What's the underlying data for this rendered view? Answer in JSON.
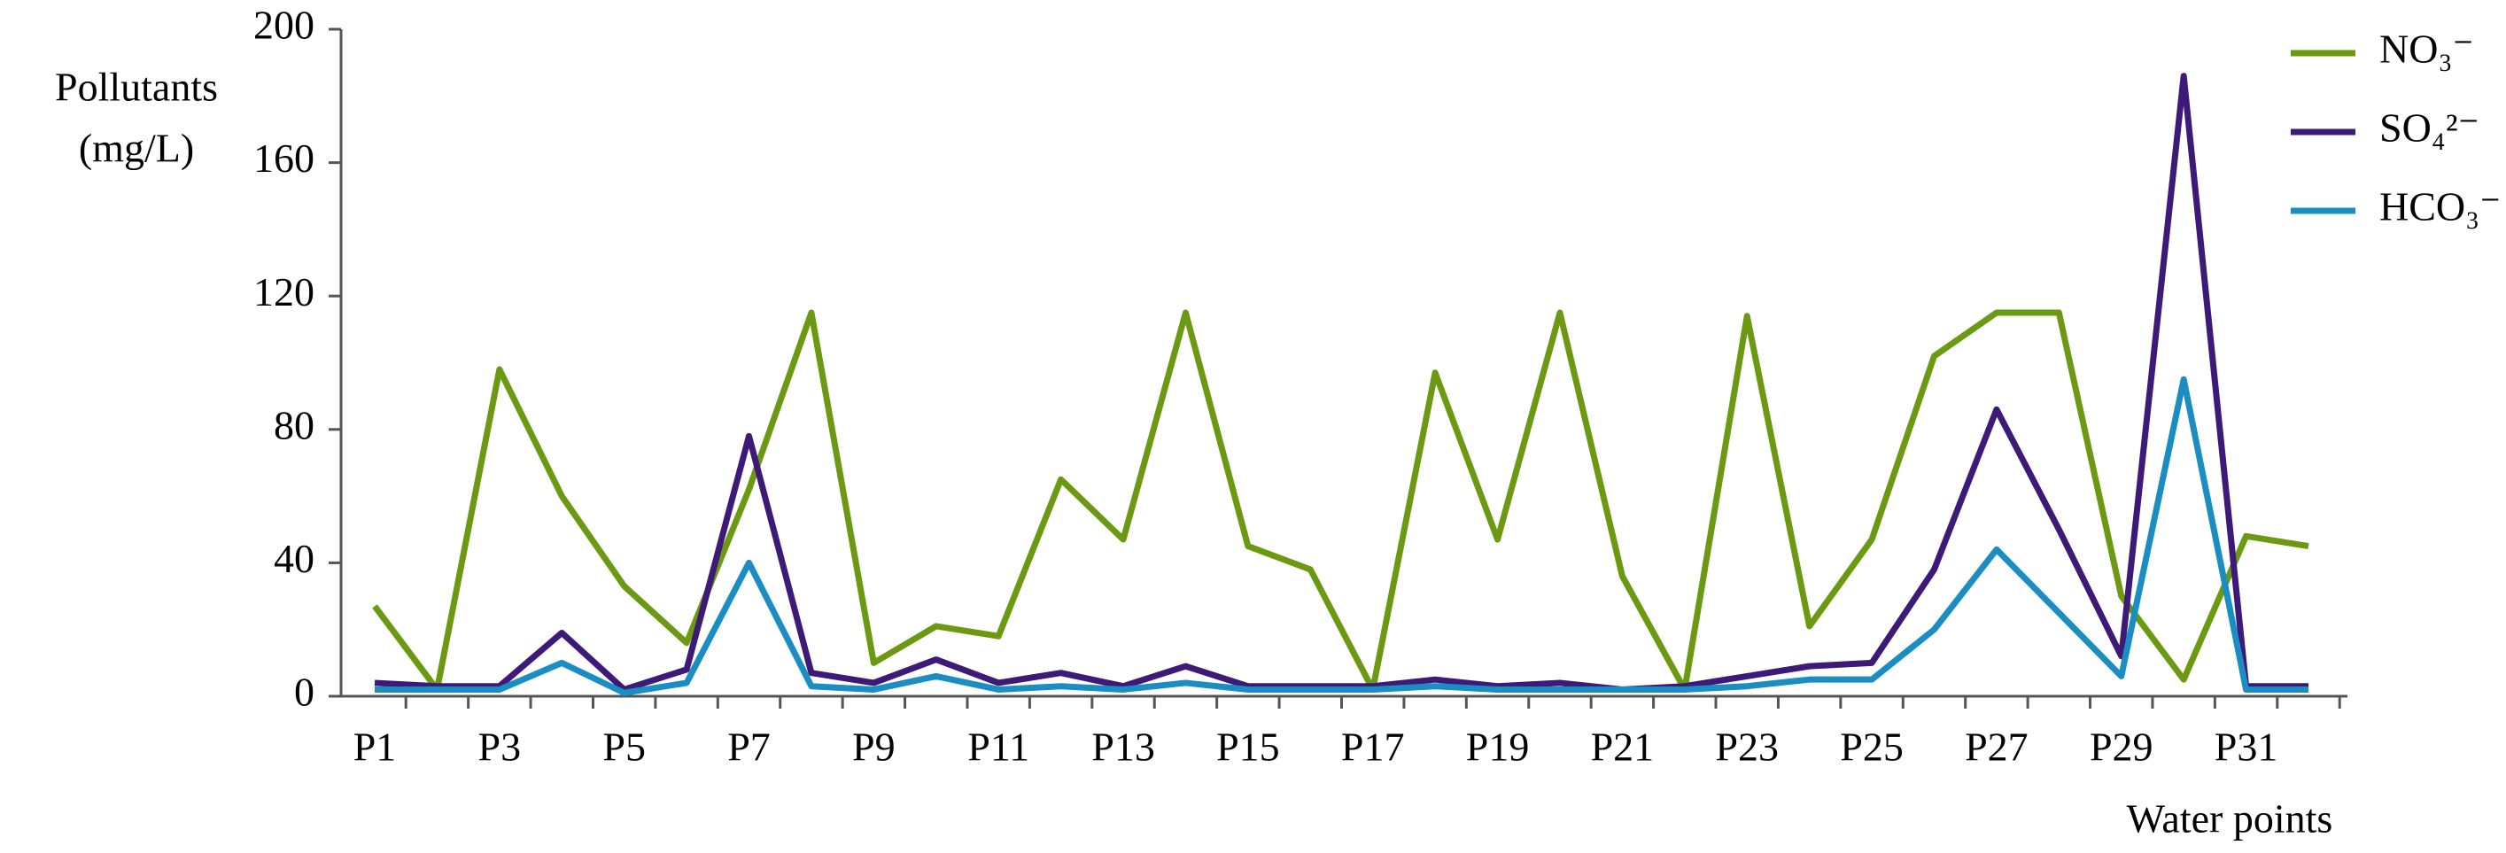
{
  "chart_data": {
    "type": "line",
    "ylabel": [
      "Pollutants",
      "(mg/L)"
    ],
    "xlabel": "Water points",
    "categories": [
      "P1",
      null,
      "P3",
      null,
      "P5",
      null,
      "P7",
      null,
      "P9",
      null,
      "P11",
      null,
      "P13",
      null,
      "P15",
      null,
      "P17",
      null,
      "P19",
      null,
      "P21",
      null,
      "P23",
      null,
      "P25",
      null,
      "P27",
      null,
      "P29",
      null,
      "P31",
      null
    ],
    "series": [
      {
        "name": "NO₃⁻",
        "color": "#6b9a12",
        "values": [
          27,
          2,
          98,
          60,
          33,
          16,
          62,
          115,
          10,
          21,
          18,
          65,
          47,
          115,
          45,
          38,
          2,
          97,
          47,
          115,
          36,
          2,
          114,
          21,
          47,
          102,
          115,
          115,
          30,
          5,
          48,
          45
        ]
      },
      {
        "name": "SO₄²⁻",
        "color": "#3d1a78",
        "values": [
          4,
          3,
          3,
          19,
          2,
          8,
          78,
          7,
          4,
          11,
          4,
          7,
          3,
          9,
          3,
          3,
          3,
          5,
          3,
          4,
          2,
          3,
          6,
          9,
          10,
          38,
          86,
          50,
          12,
          186,
          3,
          3
        ]
      },
      {
        "name": "HCO₃⁻",
        "color": "#1a8dc2",
        "values": [
          2,
          2,
          2,
          10,
          1,
          4,
          40,
          3,
          2,
          6,
          2,
          3,
          2,
          4,
          2,
          2,
          2,
          3,
          2,
          2,
          2,
          2,
          3,
          5,
          5,
          20,
          44,
          25,
          6,
          95,
          2,
          2
        ]
      }
    ],
    "ylim": [
      0,
      200
    ],
    "yticks": [
      0,
      40,
      80,
      120,
      160,
      200
    ],
    "grid": false,
    "legend": "upper right"
  }
}
